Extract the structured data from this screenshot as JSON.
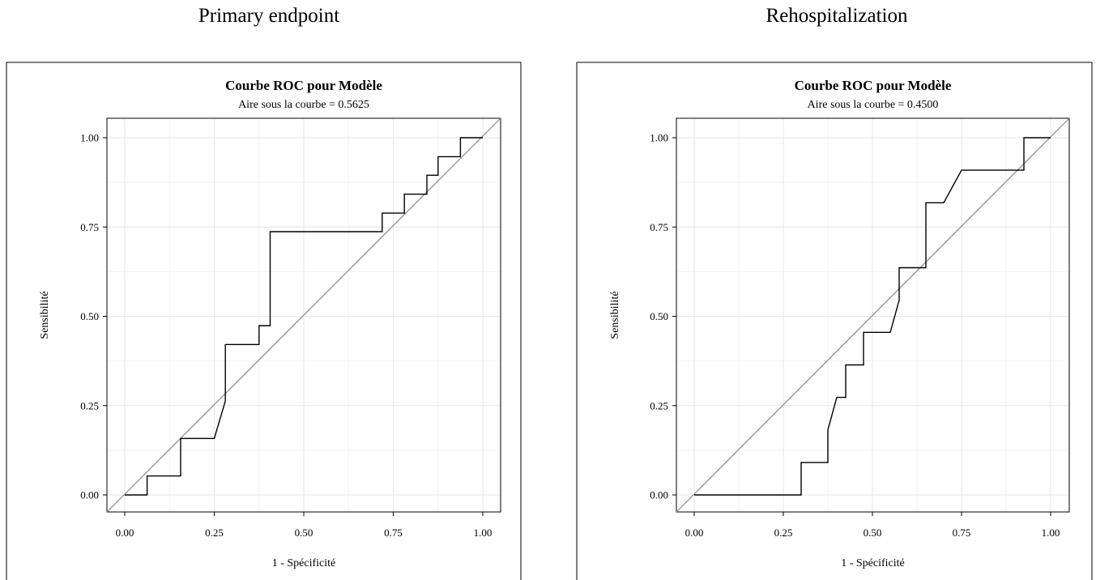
{
  "panels": [
    {
      "heading": "Primary endpoint"
    },
    {
      "heading": "Rehospitalization"
    }
  ],
  "chart_data": [
    {
      "type": "line",
      "title": "Courbe ROC pour Modèle",
      "subtitle": "Aire sous la courbe = 0.5625",
      "xlabel": "1 - Spécificité",
      "ylabel": "Sensibilité",
      "xlim": [
        0,
        1
      ],
      "ylim": [
        0,
        1
      ],
      "xticks": [
        "0.00",
        "0.25",
        "0.50",
        "0.75",
        "1.00"
      ],
      "yticks": [
        "0.00",
        "0.25",
        "0.50",
        "0.75",
        "1.00"
      ],
      "grid": true,
      "line_color": "#000000",
      "reference_color": "#888888",
      "reference_line": [
        [
          0,
          0
        ],
        [
          1,
          1
        ]
      ],
      "series": [
        {
          "x": [
            0,
            0.0625,
            0.0625,
            0.156,
            0.156,
            0.25,
            0.281,
            0.281,
            0.375,
            0.375,
            0.406,
            0.406,
            0.719,
            0.719,
            0.781,
            0.781,
            0.844,
            0.844,
            0.875,
            0.875,
            0.9375,
            0.9375,
            1.0
          ],
          "y": [
            0,
            0,
            0.053,
            0.053,
            0.158,
            0.158,
            0.263,
            0.421,
            0.421,
            0.474,
            0.474,
            0.737,
            0.737,
            0.789,
            0.789,
            0.842,
            0.842,
            0.895,
            0.895,
            0.947,
            0.947,
            1.0,
            1.0
          ]
        }
      ]
    },
    {
      "type": "line",
      "title": "Courbe ROC pour Modèle",
      "subtitle": "Aire sous la courbe = 0.4500",
      "xlabel": "1 - Spécificité",
      "ylabel": "Sensibilité",
      "xlim": [
        0,
        1
      ],
      "ylim": [
        0,
        1
      ],
      "xticks": [
        "0.00",
        "0.25",
        "0.50",
        "0.75",
        "1.00"
      ],
      "yticks": [
        "0.00",
        "0.25",
        "0.50",
        "0.75",
        "1.00"
      ],
      "grid": true,
      "line_color": "#000000",
      "reference_color": "#888888",
      "reference_line": [
        [
          0,
          0
        ],
        [
          1,
          1
        ]
      ],
      "series": [
        {
          "x": [
            0,
            0.3,
            0.3,
            0.375,
            0.375,
            0.4,
            0.425,
            0.425,
            0.475,
            0.475,
            0.55,
            0.575,
            0.575,
            0.65,
            0.65,
            0.7,
            0.75,
            0.925,
            0.925,
            1.0
          ],
          "y": [
            0,
            0,
            0.091,
            0.091,
            0.182,
            0.273,
            0.273,
            0.364,
            0.364,
            0.455,
            0.455,
            0.545,
            0.636,
            0.636,
            0.818,
            0.818,
            0.909,
            0.909,
            1.0,
            1.0
          ]
        }
      ]
    }
  ]
}
